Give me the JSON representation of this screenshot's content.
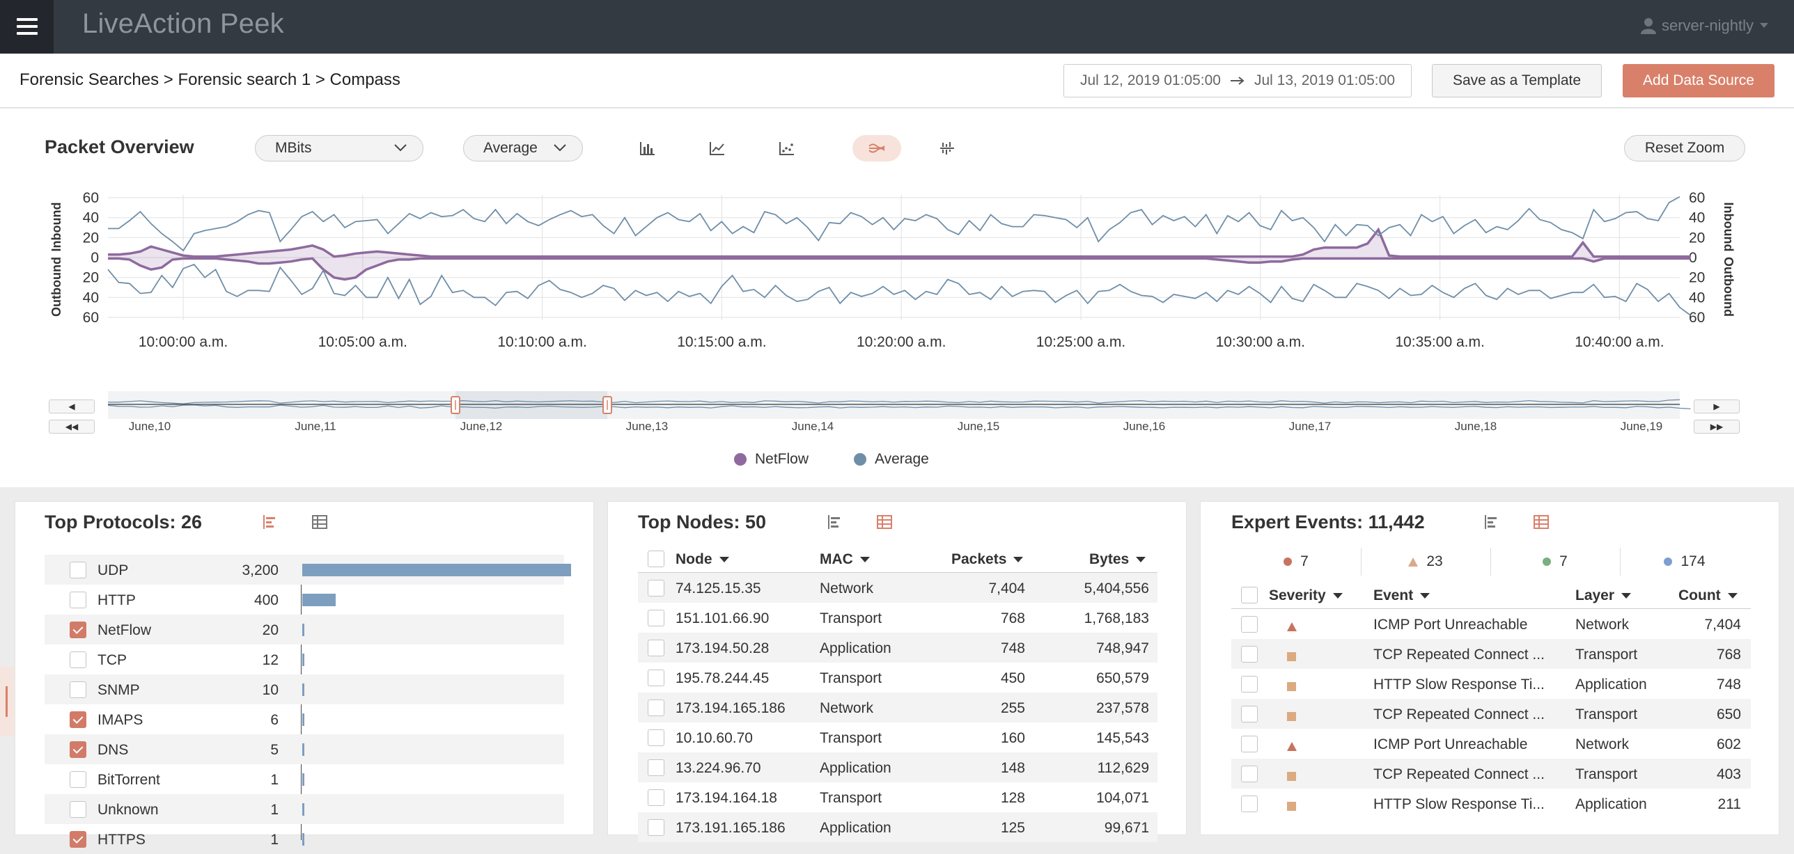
{
  "app": {
    "title": "LiveAction Peek",
    "user": "server-nightly"
  },
  "breadcrumb": "Forensic Searches > Forensic search 1 > Compass",
  "date_range": {
    "start": "Jul 12, 2019 01:05:00",
    "end": "Jul 13, 2019 01:05:00"
  },
  "buttons": {
    "save_template": "Save as a Template",
    "add_data_source": "Add Data Source",
    "reset_zoom": "Reset Zoom"
  },
  "overview": {
    "title": "Packet Overview",
    "unit_select": "MBits",
    "agg_select": "Average",
    "chart_tools": [
      "bar-chart-icon",
      "line-chart-icon",
      "scatter-chart-icon",
      "mirror-area-chart-icon",
      "column-grid-icon"
    ],
    "active_tool": 3,
    "legend": [
      {
        "label": "NetFlow",
        "color": "#8e6a9e"
      },
      {
        "label": "Average",
        "color": "#6f8ea8"
      }
    ]
  },
  "chart_data": {
    "type": "area",
    "ylabel_left_top": "Inbound",
    "ylabel_left_bottom": "Outbound",
    "ylabel_right_top": "Inbound",
    "ylabel_right_bottom": "Outbound",
    "ylim": [
      -60,
      60
    ],
    "y_ticks": [
      "60",
      "40",
      "20",
      "0",
      "20",
      "40",
      "60"
    ],
    "x_ticks": [
      "10:00:00 a.m.",
      "10:05:00 a.m.",
      "10:10:00 a.m.",
      "10:15:00 a.m.",
      "10:20:00 a.m.",
      "10:25:00 a.m.",
      "10:30:00 a.m.",
      "10:35:00 a.m.",
      "10:40:00 a.m."
    ],
    "series": [
      {
        "name": "Average",
        "color": "#6f8ea8",
        "inbound": [
          29,
          29,
          37,
          46,
          34,
          24,
          16,
          7,
          24,
          27,
          29,
          31,
          36,
          43,
          47,
          45,
          16,
          28,
          41,
          46,
          36,
          43,
          30,
          36,
          37,
          38,
          24,
          34,
          44,
          39,
          45,
          41,
          42,
          48,
          39,
          36,
          48,
          34,
          44,
          36,
          32,
          38,
          43,
          47,
          41,
          43,
          32,
          24,
          40,
          22,
          31,
          40,
          45,
          38,
          36,
          44,
          27,
          36,
          24,
          31,
          25,
          46,
          43,
          34,
          40,
          30,
          17,
          35,
          34,
          45,
          41,
          33,
          40,
          28,
          39,
          37,
          43,
          39,
          28,
          23,
          37,
          27,
          43,
          34,
          31,
          31,
          43,
          42,
          40,
          38,
          30,
          40,
          16,
          28,
          35,
          45,
          48,
          33,
          42,
          37,
          41,
          31,
          43,
          24,
          42,
          36,
          45,
          32,
          28,
          47,
          37,
          40,
          30,
          16,
          33,
          22,
          33,
          32,
          22,
          30,
          33,
          22,
          43,
          36,
          41,
          24,
          32,
          38,
          25,
          31,
          28,
          37,
          49,
          38,
          35,
          28,
          25,
          19,
          48,
          36,
          39,
          45,
          46,
          39,
          37,
          55,
          61
        ],
        "outbound": [
          12,
          25,
          26,
          36,
          35,
          18,
          30,
          11,
          7,
          20,
          12,
          34,
          39,
          33,
          33,
          34,
          10,
          23,
          37,
          31,
          13,
          36,
          38,
          28,
          40,
          40,
          20,
          41,
          22,
          47,
          39,
          18,
          35,
          33,
          40,
          40,
          48,
          35,
          34,
          41,
          28,
          23,
          32,
          35,
          40,
          36,
          28,
          31,
          43,
          33,
          38,
          35,
          44,
          34,
          39,
          36,
          46,
          29,
          18,
          34,
          32,
          40,
          28,
          38,
          44,
          42,
          34,
          30,
          46,
          35,
          39,
          36,
          29,
          37,
          33,
          42,
          34,
          37,
          22,
          26,
          37,
          35,
          42,
          29,
          39,
          34,
          33,
          34,
          45,
          38,
          33,
          46,
          34,
          33,
          27,
          34,
          38,
          39,
          45,
          37,
          39,
          41,
          35,
          44,
          33,
          37,
          29,
          36,
          45,
          29,
          41,
          44,
          27,
          33,
          40,
          40,
          26,
          29,
          33,
          41,
          31,
          38,
          37,
          28,
          35,
          40,
          31,
          26,
          38,
          42,
          31,
          37,
          33,
          33,
          41,
          38,
          35,
          35,
          27,
          40,
          39,
          44,
          26,
          32,
          44,
          36,
          50,
          58
        ]
      },
      {
        "name": "NetFlow",
        "color": "#8e6a9e",
        "inbound": [
          3,
          3,
          4,
          6,
          11,
          8,
          5,
          2,
          1,
          1,
          1,
          2,
          3,
          4,
          5,
          6,
          7,
          8,
          10,
          12,
          8,
          1,
          2,
          4,
          5,
          6,
          5,
          4,
          3,
          2,
          1,
          1,
          1,
          1,
          1,
          1,
          1,
          1,
          1,
          1,
          1,
          1,
          1,
          1,
          1,
          1,
          1,
          1,
          1,
          1,
          1,
          1,
          1,
          1,
          1,
          1,
          1,
          1,
          1,
          1,
          1,
          1,
          1,
          1,
          1,
          1,
          1,
          1,
          1,
          1,
          1,
          1,
          1,
          1,
          1,
          1,
          1,
          1,
          1,
          1,
          1,
          1,
          1,
          1,
          1,
          1,
          1,
          1,
          1,
          1,
          1,
          1,
          1,
          1,
          1,
          1,
          1,
          1,
          1,
          1,
          1,
          1,
          1,
          1,
          1,
          1,
          1,
          1,
          1,
          1,
          1,
          3,
          8,
          10,
          10,
          10,
          10,
          14,
          28,
          2,
          1,
          1,
          1,
          1,
          1,
          1,
          1,
          1,
          1,
          1,
          1,
          1,
          1,
          1,
          1,
          1,
          1,
          15,
          1,
          1,
          1,
          1,
          1,
          1,
          1,
          1,
          1,
          1
        ],
        "outbound": [
          1,
          1,
          2,
          8,
          12,
          10,
          2,
          1,
          1,
          1,
          1,
          2,
          3,
          4,
          6,
          6,
          5,
          4,
          2,
          1,
          12,
          20,
          22,
          20,
          12,
          8,
          4,
          2,
          2,
          1,
          1,
          1,
          1,
          1,
          1,
          1,
          1,
          1,
          1,
          1,
          1,
          1,
          1,
          1,
          1,
          1,
          1,
          1,
          1,
          1,
          1,
          1,
          1,
          1,
          1,
          1,
          1,
          1,
          1,
          1,
          1,
          1,
          1,
          1,
          1,
          1,
          1,
          1,
          1,
          1,
          1,
          1,
          1,
          1,
          1,
          1,
          1,
          1,
          1,
          1,
          1,
          1,
          1,
          1,
          1,
          1,
          1,
          1,
          1,
          1,
          1,
          1,
          1,
          1,
          1,
          1,
          1,
          1,
          1,
          1,
          1,
          1,
          1,
          2,
          3,
          4,
          5,
          5,
          4,
          4,
          2,
          1,
          1,
          1,
          1,
          1,
          1,
          1,
          1,
          1,
          1,
          1,
          1,
          1,
          1,
          1,
          1,
          1,
          1,
          1,
          1,
          1,
          1,
          1,
          1,
          1,
          1,
          1,
          4,
          1,
          1,
          1,
          1,
          1,
          1,
          1,
          1,
          1
        ]
      }
    ],
    "navigator_ticks": [
      "June,10",
      "June,11",
      "June,12",
      "June,13",
      "June,14",
      "June,15",
      "June,16",
      "June,17",
      "June,18",
      "June,19"
    ]
  },
  "protocols": {
    "title": "Top Protocols: 26",
    "rows": [
      {
        "name": "UDP",
        "value": "3,200",
        "num": 3200,
        "checked": false
      },
      {
        "name": "HTTP",
        "value": "400",
        "num": 400,
        "checked": false
      },
      {
        "name": "NetFlow",
        "value": "20",
        "num": 20,
        "checked": true
      },
      {
        "name": "TCP",
        "value": "12",
        "num": 12,
        "checked": false
      },
      {
        "name": "SNMP",
        "value": "10",
        "num": 10,
        "checked": false
      },
      {
        "name": "IMAPS",
        "value": "6",
        "num": 6,
        "checked": true
      },
      {
        "name": "DNS",
        "value": "5",
        "num": 5,
        "checked": true
      },
      {
        "name": "BitTorrent",
        "value": "1",
        "num": 1,
        "checked": false
      },
      {
        "name": "Unknown",
        "value": "1",
        "num": 1,
        "checked": false
      },
      {
        "name": "HTTPS",
        "value": "1",
        "num": 1,
        "checked": true
      }
    ]
  },
  "nodes": {
    "title": "Top Nodes: 50",
    "headers": {
      "node": "Node",
      "mac": "MAC",
      "packets": "Packets",
      "bytes": "Bytes"
    },
    "rows": [
      {
        "node": "74.125.15.35",
        "mac": "Network",
        "packets": "7,404",
        "bytes": "5,404,556"
      },
      {
        "node": "151.101.66.90",
        "mac": "Transport",
        "packets": "768",
        "bytes": "1,768,183"
      },
      {
        "node": "173.194.50.28",
        "mac": "Application",
        "packets": "748",
        "bytes": "748,947"
      },
      {
        "node": "195.78.244.45",
        "mac": "Transport",
        "packets": "450",
        "bytes": "650,579"
      },
      {
        "node": "173.194.165.186",
        "mac": "Network",
        "packets": "255",
        "bytes": "237,578"
      },
      {
        "node": "10.10.60.70",
        "mac": "Transport",
        "packets": "160",
        "bytes": "145,543"
      },
      {
        "node": "13.224.96.70",
        "mac": "Application",
        "packets": "148",
        "bytes": "112,629"
      },
      {
        "node": "173.194.164.18",
        "mac": "Transport",
        "packets": "128",
        "bytes": "104,071"
      },
      {
        "node": "173.191.165.186",
        "mac": "Application",
        "packets": "125",
        "bytes": "99,671"
      }
    ]
  },
  "events": {
    "title": "Expert Events: 11,442",
    "severity_counts": [
      {
        "count": "7",
        "shape": "dot",
        "color": "#c8735f"
      },
      {
        "count": "23",
        "shape": "tri",
        "color": "#d9a98b"
      },
      {
        "count": "7",
        "shape": "dot",
        "color": "#78b080"
      },
      {
        "count": "174",
        "shape": "dot",
        "color": "#7d9ecf"
      }
    ],
    "headers": {
      "severity": "Severity",
      "event": "Event",
      "layer": "Layer",
      "count": "Count"
    },
    "rows": [
      {
        "sev": "tri",
        "event": "ICMP Port Unreachable",
        "layer": "Network",
        "count": "7,404"
      },
      {
        "sev": "sq",
        "event": "TCP Repeated Connect ...",
        "layer": "Transport",
        "count": "768"
      },
      {
        "sev": "sq",
        "event": "HTTP Slow Response Ti...",
        "layer": "Application",
        "count": "748"
      },
      {
        "sev": "sq",
        "event": "TCP Repeated Connect ...",
        "layer": "Transport",
        "count": "650"
      },
      {
        "sev": "tri",
        "event": "ICMP Port Unreachable",
        "layer": "Network",
        "count": "602"
      },
      {
        "sev": "sq",
        "event": "TCP Repeated Connect ...",
        "layer": "Transport",
        "count": "403"
      },
      {
        "sev": "sq",
        "event": "HTTP Slow Response Ti...",
        "layer": "Application",
        "count": "211"
      }
    ]
  }
}
